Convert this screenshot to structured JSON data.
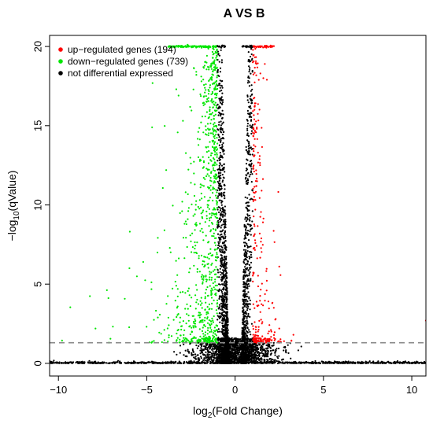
{
  "chart_data": {
    "type": "scatter",
    "title": "A VS B",
    "xlabel": {
      "prefix": "log",
      "sub": "2",
      "suffix": "(Fold Change)"
    },
    "ylabel": {
      "prefix": "−log",
      "sub": "10",
      "suffix": "(qValue)"
    },
    "xlim": [
      -10.5,
      10.8
    ],
    "ylim": [
      -0.8,
      20.7
    ],
    "x_ticks": [
      {
        "value": -10,
        "label": "−10"
      },
      {
        "value": -5,
        "label": "−5"
      },
      {
        "value": 0,
        "label": "0"
      },
      {
        "value": 5,
        "label": "5"
      },
      {
        "value": 10,
        "label": "10"
      }
    ],
    "y_ticks": [
      {
        "value": 0,
        "label": "0"
      },
      {
        "value": 5,
        "label": "5"
      },
      {
        "value": 10,
        "label": "10"
      },
      {
        "value": 15,
        "label": "15"
      },
      {
        "value": 20,
        "label": "20"
      }
    ],
    "threshold_y": 1.3,
    "fc_threshold": 1,
    "legend_position": "top-left",
    "series": [
      {
        "name": "up−regulated genes (194)",
        "color": "#ff0000",
        "count": 194
      },
      {
        "name": "down−regulated genes (739)",
        "color": "#00e600",
        "count": 739
      },
      {
        "name": "not differential expressed",
        "color": "#000000"
      }
    ],
    "notable_points": {
      "up": [
        [
          1.6,
          18.0
        ],
        [
          1.8,
          17.9
        ],
        [
          1.2,
          18.9
        ],
        [
          1.1,
          16.2
        ],
        [
          2.1,
          3.8
        ],
        [
          2.3,
          2.8
        ],
        [
          3.3,
          1.8
        ],
        [
          10.8,
          2.7
        ],
        [
          1.5,
          10.9
        ],
        [
          2.5,
          2.2
        ]
      ],
      "down": [
        [
          -7.9,
          2.2
        ],
        [
          -5.2,
          6.4
        ],
        [
          -4.7,
          14.9
        ],
        [
          -4.0,
          8.4
        ],
        [
          -3.9,
          12.2
        ],
        [
          -3.2,
          16.9
        ],
        [
          -2.8,
          10.8
        ],
        [
          -2.2,
          18.4
        ],
        [
          -3.0,
          9.6
        ],
        [
          -2.5,
          7.7
        ]
      ]
    }
  }
}
